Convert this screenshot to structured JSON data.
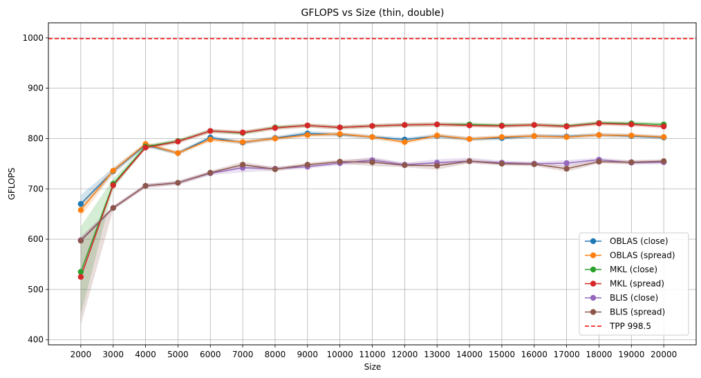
{
  "chart_data": {
    "type": "line",
    "title": "GFLOPS vs Size (thin, double)",
    "xlabel": "Size",
    "ylabel": "GFLOPS",
    "x": [
      2000,
      3000,
      4000,
      5000,
      6000,
      7000,
      8000,
      9000,
      10000,
      11000,
      12000,
      13000,
      14000,
      15000,
      16000,
      17000,
      18000,
      19000,
      20000
    ],
    "x_tick_labels": [
      "2000",
      "3000",
      "4000",
      "5000",
      "6000",
      "7000",
      "8000",
      "9000",
      "10000",
      "11000",
      "12000",
      "13000",
      "14000",
      "15000",
      "16000",
      "17000",
      "18000",
      "19000",
      "20000"
    ],
    "xlim": [
      1000,
      21000
    ],
    "ylim": [
      390,
      1030
    ],
    "y_ticks": [
      400,
      500,
      600,
      700,
      800,
      900,
      1000
    ],
    "y_tick_labels": [
      "400",
      "500",
      "600",
      "700",
      "800",
      "900",
      "1000"
    ],
    "grid": true,
    "legend_placement": "lower-right",
    "series": [
      {
        "name": "OBLAS (close)",
        "color": "#1f77b4",
        "values": [
          670,
          735,
          787,
          771,
          802,
          792,
          801,
          810,
          808,
          803,
          798,
          805,
          799,
          801,
          805,
          804,
          807,
          805,
          802
        ],
        "band": [
          [
            658,
            688
          ],
          [
            728,
            742
          ],
          [
            783,
            791
          ],
          [
            767,
            775
          ],
          [
            798,
            806
          ],
          [
            788,
            796
          ],
          [
            797,
            805
          ],
          [
            805,
            815
          ],
          [
            804,
            812
          ],
          [
            799,
            807
          ],
          [
            794,
            802
          ],
          [
            801,
            809
          ],
          [
            795,
            803
          ],
          [
            797,
            805
          ],
          [
            801,
            809
          ],
          [
            800,
            808
          ],
          [
            803,
            811
          ],
          [
            801,
            809
          ],
          [
            798,
            806
          ]
        ]
      },
      {
        "name": "OBLAS (spread)",
        "color": "#ff7f0e",
        "values": [
          658,
          736,
          789,
          771,
          798,
          793,
          800,
          807,
          809,
          803,
          793,
          806,
          799,
          803,
          805,
          803,
          807,
          806,
          803
        ],
        "band": [
          [
            645,
            672
          ],
          [
            730,
            742
          ],
          [
            785,
            793
          ],
          [
            767,
            775
          ],
          [
            794,
            802
          ],
          [
            789,
            797
          ],
          [
            796,
            804
          ],
          [
            803,
            811
          ],
          [
            805,
            813
          ],
          [
            799,
            807
          ],
          [
            789,
            797
          ],
          [
            802,
            810
          ],
          [
            795,
            803
          ],
          [
            799,
            807
          ],
          [
            801,
            809
          ],
          [
            799,
            807
          ],
          [
            803,
            811
          ],
          [
            802,
            810
          ],
          [
            799,
            807
          ]
        ]
      },
      {
        "name": "MKL (close)",
        "color": "#2ca02c",
        "values": [
          535,
          710,
          784,
          795,
          815,
          811,
          822,
          826,
          822,
          825,
          827,
          828,
          828,
          826,
          827,
          825,
          831,
          830,
          828
        ],
        "band": [
          [
            450,
            625
          ],
          [
            700,
            720
          ],
          [
            780,
            788
          ],
          [
            791,
            799
          ],
          [
            811,
            819
          ],
          [
            807,
            815
          ],
          [
            818,
            826
          ],
          [
            822,
            830
          ],
          [
            818,
            826
          ],
          [
            821,
            829
          ],
          [
            823,
            831
          ],
          [
            824,
            832
          ],
          [
            824,
            832
          ],
          [
            822,
            830
          ],
          [
            823,
            831
          ],
          [
            821,
            829
          ],
          [
            827,
            835
          ],
          [
            826,
            834
          ],
          [
            824,
            832
          ]
        ]
      },
      {
        "name": "MKL (spread)",
        "color": "#d62728",
        "values": [
          525,
          707,
          782,
          794,
          815,
          812,
          821,
          826,
          822,
          825,
          827,
          828,
          826,
          825,
          827,
          824,
          830,
          828,
          824
        ],
        "band": [
          [
            520,
            530
          ],
          [
            703,
            711
          ],
          [
            778,
            786
          ],
          [
            790,
            798
          ],
          [
            811,
            819
          ],
          [
            808,
            816
          ],
          [
            817,
            825
          ],
          [
            822,
            830
          ],
          [
            818,
            826
          ],
          [
            821,
            829
          ],
          [
            823,
            831
          ],
          [
            824,
            832
          ],
          [
            822,
            830
          ],
          [
            821,
            829
          ],
          [
            823,
            831
          ],
          [
            820,
            828
          ],
          [
            826,
            834
          ],
          [
            824,
            832
          ],
          [
            820,
            828
          ]
        ]
      },
      {
        "name": "BLIS (close)",
        "color": "#9467bd",
        "values": [
          598,
          662,
          706,
          712,
          731,
          742,
          740,
          744,
          751,
          757,
          748,
          752,
          755,
          752,
          750,
          751,
          758,
          752,
          753
        ],
        "band": [
          [
            594,
            602
          ],
          [
            658,
            666
          ],
          [
            702,
            710
          ],
          [
            708,
            716
          ],
          [
            727,
            735
          ],
          [
            733,
            749
          ],
          [
            736,
            744
          ],
          [
            740,
            748
          ],
          [
            747,
            755
          ],
          [
            751,
            763
          ],
          [
            744,
            752
          ],
          [
            745,
            759
          ],
          [
            751,
            762
          ],
          [
            748,
            756
          ],
          [
            746,
            754
          ],
          [
            745,
            757
          ],
          [
            754,
            762
          ],
          [
            748,
            756
          ],
          [
            749,
            757
          ]
        ]
      },
      {
        "name": "BLIS (spread)",
        "color": "#8c564b",
        "values": [
          597,
          662,
          706,
          712,
          732,
          748,
          739,
          748,
          754,
          753,
          747,
          746,
          755,
          750,
          749,
          740,
          754,
          753,
          755
        ],
        "band": [
          [
            430,
            605
          ],
          [
            658,
            666
          ],
          [
            702,
            710
          ],
          [
            708,
            716
          ],
          [
            728,
            736
          ],
          [
            742,
            754
          ],
          [
            735,
            743
          ],
          [
            744,
            752
          ],
          [
            750,
            758
          ],
          [
            745,
            761
          ],
          [
            743,
            751
          ],
          [
            738,
            753
          ],
          [
            751,
            759
          ],
          [
            746,
            754
          ],
          [
            745,
            753
          ],
          [
            734,
            746
          ],
          [
            750,
            758
          ],
          [
            749,
            757
          ],
          [
            751,
            759
          ]
        ]
      }
    ],
    "reference_line": {
      "name": "TPP 998.5",
      "value": 998.5,
      "color": "#ff0000"
    }
  }
}
